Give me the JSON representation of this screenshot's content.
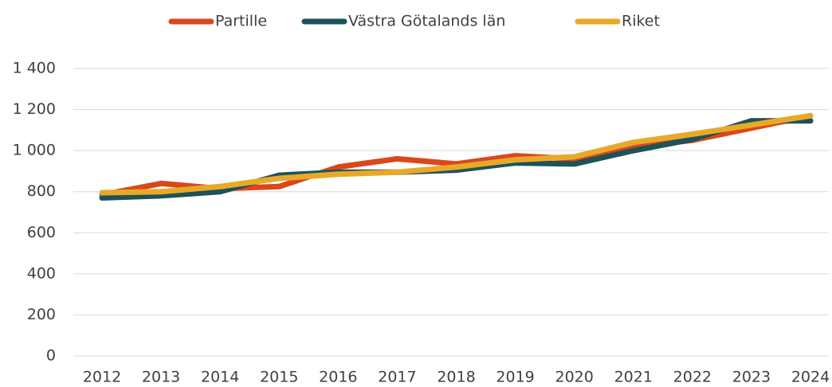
{
  "chart_data": {
    "type": "line",
    "x": [
      "2012",
      "2013",
      "2014",
      "2015",
      "2016",
      "2017",
      "2018",
      "2019",
      "2020",
      "2021",
      "2022",
      "2023",
      "2024"
    ],
    "series": [
      {
        "name": "Partille",
        "color": "#d9481c",
        "values": [
          785,
          840,
          815,
          825,
          920,
          960,
          935,
          975,
          960,
          1020,
          1050,
          1110,
          1170
        ]
      },
      {
        "name": "Västra Götalands län",
        "color": "#1f5258",
        "values": [
          770,
          780,
          800,
          880,
          895,
          895,
          905,
          940,
          935,
          1000,
          1055,
          1145,
          1145
        ]
      },
      {
        "name": "Riket",
        "color": "#e8a92a",
        "values": [
          795,
          800,
          825,
          865,
          885,
          895,
          920,
          955,
          970,
          1040,
          1080,
          1125,
          1170
        ]
      }
    ],
    "ylim": [
      0,
      1400
    ],
    "yticks": [
      0,
      200,
      400,
      600,
      800,
      {
        "value": 1000,
        "label": "1 000"
      },
      {
        "value": 1200,
        "label": "1 200"
      },
      {
        "value": 1400,
        "label": "1 400"
      }
    ],
    "grid": true,
    "legend": "top"
  }
}
